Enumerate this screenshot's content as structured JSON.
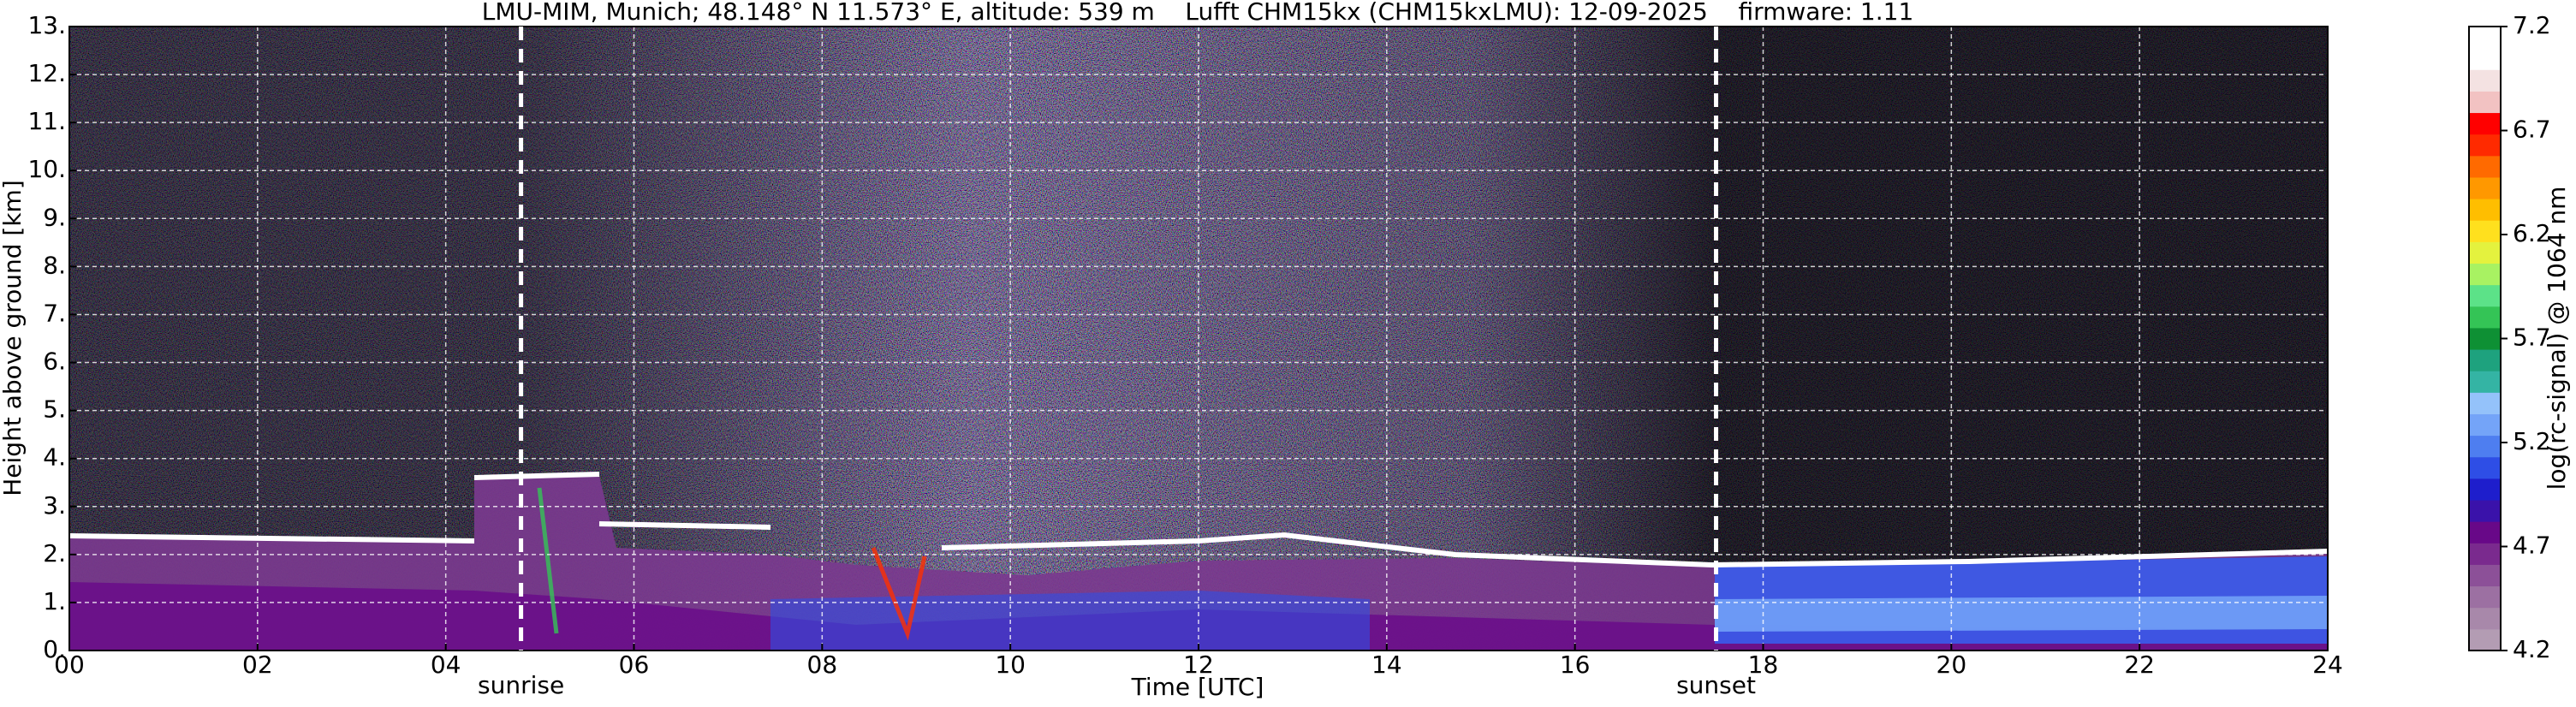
{
  "chart_data": {
    "type": "heatmap",
    "title": "LMU-MIM, Munich; 48.148° N 11.573° E, altitude: 539 m    Lufft CHM15kx (CHM15kxLMU): 12-09-2025    firmware: 1.11",
    "x_label": "Time [UTC]",
    "y_label": "Height above ground [km]",
    "xlim": [
      0,
      24
    ],
    "xticks": [
      {
        "value": 0,
        "label": "00"
      },
      {
        "value": 2,
        "label": "02"
      },
      {
        "value": 4,
        "label": "04"
      },
      {
        "value": 6,
        "label": "06"
      },
      {
        "value": 8,
        "label": "08"
      },
      10,
      12,
      14,
      16,
      18,
      20,
      22,
      24
    ],
    "ylim": [
      0,
      13
    ],
    "yticks": [
      {
        "value": 0,
        "label": "0."
      },
      {
        "value": 1,
        "label": "1."
      },
      {
        "value": 2,
        "label": "2."
      },
      {
        "value": 3,
        "label": "3."
      },
      {
        "value": 4,
        "label": "4."
      },
      {
        "value": 5,
        "label": "5."
      },
      {
        "value": 6,
        "label": "6."
      },
      {
        "value": 7,
        "label": "7."
      },
      {
        "value": 8,
        "label": "8."
      },
      {
        "value": 9,
        "label": "9."
      },
      {
        "value": 10,
        "label": "10."
      },
      {
        "value": 11,
        "label": "11."
      },
      {
        "value": 12,
        "label": "12."
      },
      {
        "value": 13,
        "label": "13."
      }
    ],
    "grid": true,
    "annotations": [
      {
        "x": 4.8,
        "label": "sunrise"
      },
      {
        "x": 17.5,
        "label": "sunset"
      }
    ],
    "colorbar": {
      "label": "log(rc-signal) @ 1064 nm",
      "lim": [
        4.2,
        7.2
      ],
      "ticks": [
        4.2,
        4.7,
        5.2,
        5.7,
        6.2,
        6.7,
        7.2
      ],
      "colors": [
        "#b39cb3",
        "#a888aa",
        "#9c70a2",
        "#8c5098",
        "#7a2a8e",
        "#680888",
        "#3a12aa",
        "#1e1ecc",
        "#2e4ee6",
        "#4e7ef0",
        "#74a4f8",
        "#94c2fa",
        "#34b4a4",
        "#1ea27e",
        "#0e9034",
        "#34c456",
        "#5ce288",
        "#a8f262",
        "#e4f23e",
        "#ffe01e",
        "#ffbe00",
        "#ff9800",
        "#ff6a00",
        "#ff2a00",
        "#ff0000",
        "#f2c2c2",
        "#f4e2e2",
        "#ffffff",
        "#ffffff"
      ]
    }
  }
}
